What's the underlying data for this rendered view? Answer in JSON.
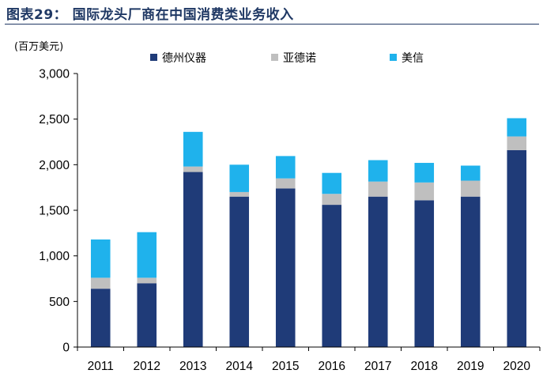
{
  "figure_title": "图表29：   国际龙头厂商在中国消费类业务收入",
  "chart_data": {
    "type": "bar",
    "stacked": true,
    "unit_label": "(百万美元)",
    "categories": [
      "2011",
      "2012",
      "2013",
      "2014",
      "2015",
      "2016",
      "2017",
      "2018",
      "2019",
      "2020"
    ],
    "series": [
      {
        "name": "德州仪器",
        "color": "#1f3b78",
        "values": [
          640,
          700,
          1920,
          1650,
          1740,
          1560,
          1650,
          1610,
          1650,
          2160
        ]
      },
      {
        "name": "亚德诺",
        "color": "#bfbfbf",
        "values": [
          120,
          60,
          60,
          50,
          110,
          120,
          165,
          195,
          175,
          150
        ]
      },
      {
        "name": "美信",
        "color": "#1fb2ec",
        "values": [
          420,
          500,
          380,
          300,
          245,
          230,
          235,
          215,
          165,
          200
        ]
      }
    ],
    "ylim": [
      0,
      3000
    ],
    "yticks": [
      "0",
      "500",
      "1,000",
      "1,500",
      "2,000",
      "2,500",
      "3,000"
    ],
    "ytick_values": [
      0,
      500,
      1000,
      1500,
      2000,
      2500,
      3000
    ],
    "legend_position": "top",
    "grid": false
  }
}
